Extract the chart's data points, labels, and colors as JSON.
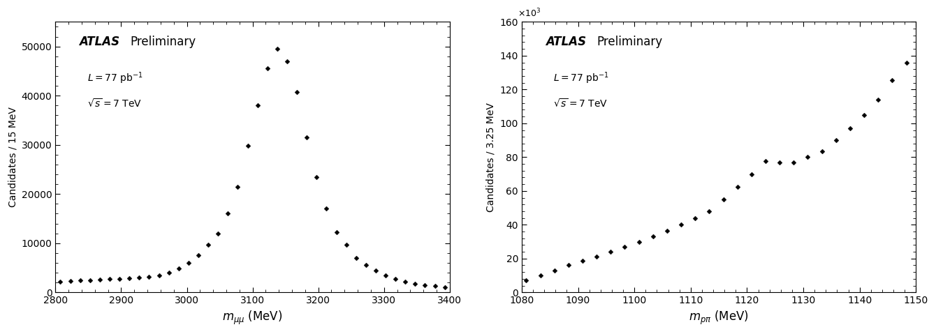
{
  "left": {
    "xlabel": "$m_{\\mu\\mu}$ (MeV)",
    "ylabel": "Candidates / 15 MeV",
    "atlas_label": "ATLAS",
    "prelim_label": "Preliminary",
    "lumi_label": "$L = 77$ pb$^{-1}$",
    "energy_label": "$\\sqrt{s} = 7$ TeV",
    "xlim": [
      2800,
      3400
    ],
    "ylim": [
      0,
      55000
    ],
    "yticks": [
      0,
      10000,
      20000,
      30000,
      40000,
      50000
    ],
    "xticks": [
      2800,
      2900,
      3000,
      3100,
      3200,
      3300,
      3400
    ],
    "x": [
      2807.5,
      2822.5,
      2837.5,
      2852.5,
      2867.5,
      2882.5,
      2897.5,
      2912.5,
      2927.5,
      2942.5,
      2957.5,
      2972.5,
      2987.5,
      3002.5,
      3017.5,
      3032.5,
      3047.5,
      3062.5,
      3077.5,
      3092.5,
      3107.5,
      3122.5,
      3137.5,
      3152.5,
      3167.5,
      3182.5,
      3197.5,
      3212.5,
      3227.5,
      3242.5,
      3257.5,
      3272.5,
      3287.5,
      3302.5,
      3317.5,
      3332.5,
      3347.5,
      3362.5,
      3377.5,
      3392.5
    ],
    "y": [
      2200,
      2300,
      2400,
      2500,
      2600,
      2700,
      2800,
      2900,
      3000,
      3200,
      3500,
      4000,
      4800,
      6000,
      7500,
      9700,
      12000,
      16000,
      21500,
      29800,
      38000,
      45500,
      49500,
      47000,
      40800,
      31500,
      23500,
      17000,
      12200,
      9700,
      7000,
      5500,
      4500,
      3500,
      2800,
      2200,
      1800,
      1500,
      1300,
      1100
    ]
  },
  "right": {
    "xlabel": "$m_{p\\pi}$ (MeV)",
    "ylabel": "Candidates / 3.25 MeV",
    "atlas_label": "ATLAS",
    "prelim_label": "Preliminary",
    "lumi_label": "$L = 77$ pb$^{-1}$",
    "energy_label": "$\\sqrt{s} = 7$ TeV",
    "xlim": [
      1080,
      1150
    ],
    "ylim": [
      0,
      160000
    ],
    "ytick_labels": [
      "0",
      "20",
      "40",
      "60",
      "80",
      "100",
      "120",
      "140",
      "160"
    ],
    "yticks": [
      0,
      20000,
      40000,
      60000,
      80000,
      100000,
      120000,
      140000,
      160000
    ],
    "xticks": [
      1080,
      1090,
      1100,
      1110,
      1120,
      1130,
      1140,
      1150
    ],
    "x": [
      1080.8,
      1083.3,
      1085.8,
      1088.3,
      1090.8,
      1093.3,
      1095.8,
      1098.3,
      1100.8,
      1103.3,
      1105.8,
      1108.3,
      1110.8,
      1113.3,
      1115.8,
      1118.3,
      1120.8,
      1123.3,
      1125.8,
      1128.3,
      1130.8,
      1133.3,
      1135.8,
      1138.3,
      1140.8,
      1143.3,
      1145.8,
      1148.3
    ],
    "y": [
      7000,
      10000,
      13000,
      16000,
      18500,
      21000,
      24000,
      27000,
      30000,
      33000,
      36500,
      40000,
      44000,
      48000,
      55000,
      62500,
      70000,
      77500,
      77000,
      77000,
      80000,
      83500,
      90000,
      97000,
      105000,
      114000,
      125500,
      136000
    ]
  }
}
